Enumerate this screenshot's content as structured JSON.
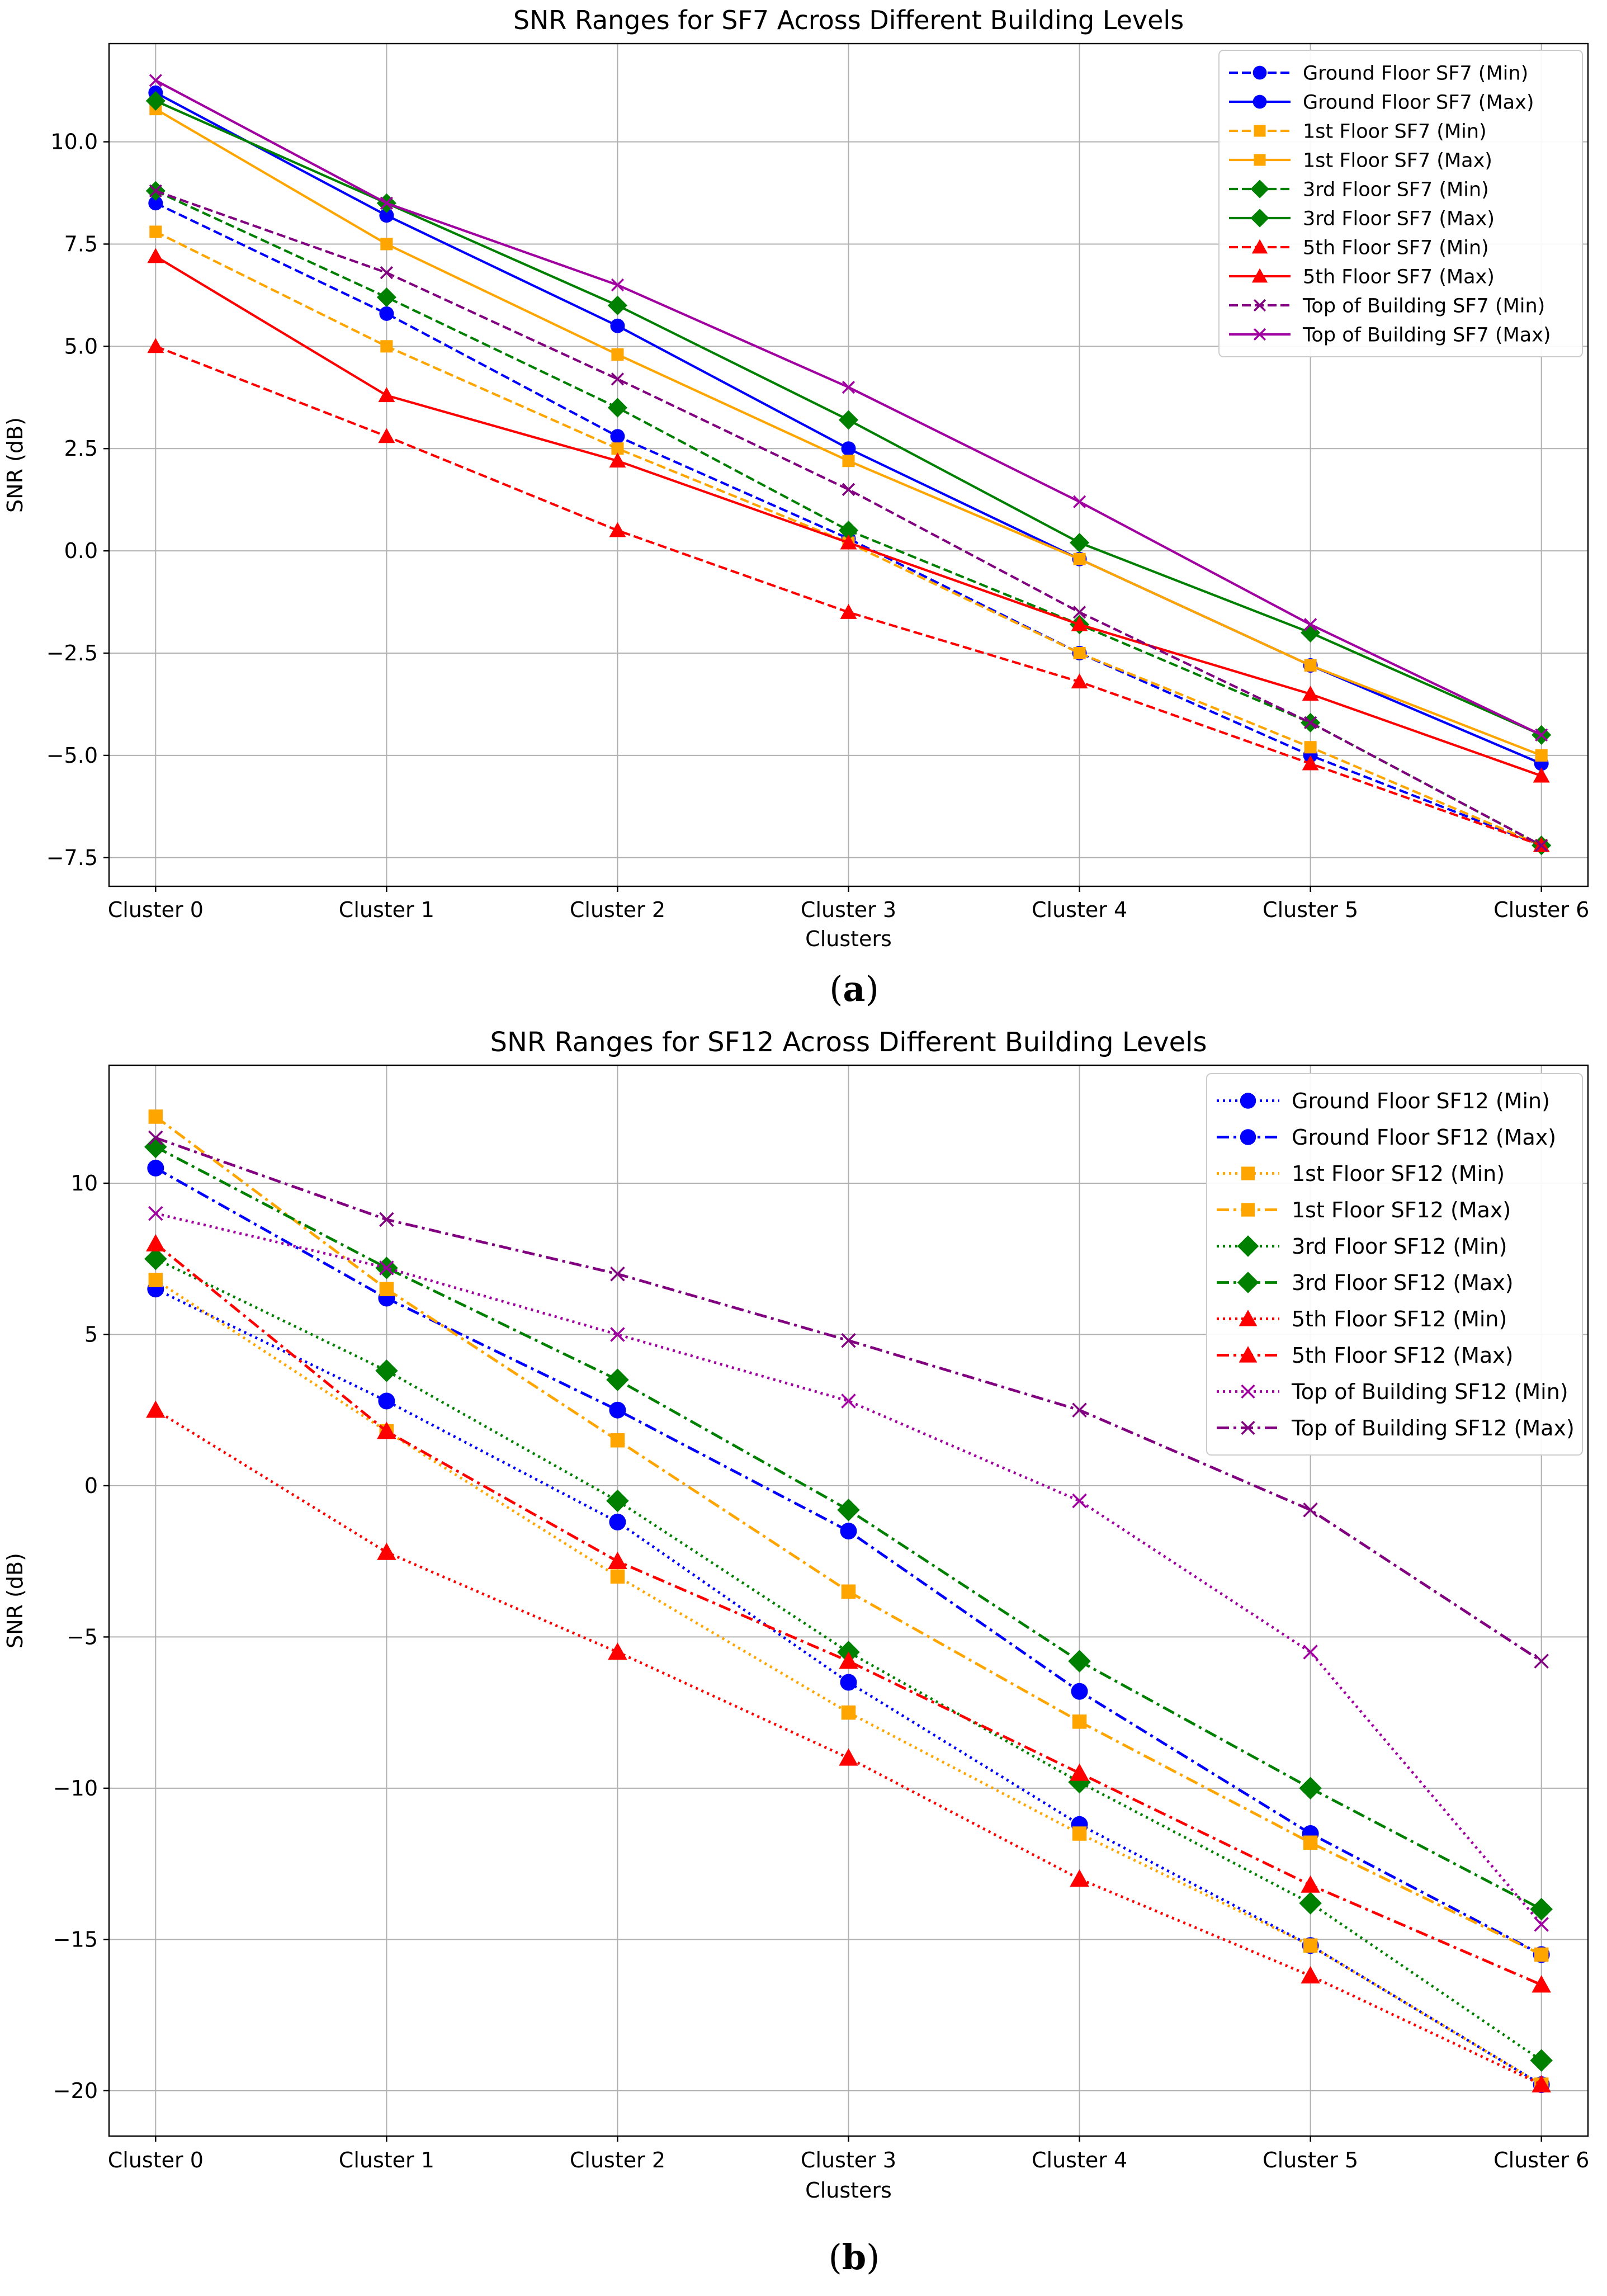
{
  "chart_data": [
    {
      "type": "line",
      "title": "SNR Ranges for SF7 Across Different Building Levels",
      "xlabel": "Clusters",
      "ylabel": "SNR (dB)",
      "caption_letter": "a",
      "categories": [
        "Cluster 0",
        "Cluster 1",
        "Cluster 2",
        "Cluster 3",
        "Cluster 4",
        "Cluster 5",
        "Cluster 6"
      ],
      "ylim": [
        -8.2,
        12.4
      ],
      "yticks": [
        -7.5,
        -5.0,
        -2.5,
        0.0,
        2.5,
        5.0,
        7.5,
        10.0
      ],
      "ytick_labels": [
        "−7.5",
        "−5.0",
        "−2.5",
        "0.0",
        "2.5",
        "5.0",
        "7.5",
        "10.0"
      ],
      "grid": true,
      "legend_position": "top-right",
      "series": [
        {
          "name": "Ground Floor SF7 (Min)",
          "color": "#0000ff",
          "dash": "dashed",
          "marker": "circle",
          "values": [
            8.5,
            5.8,
            2.8,
            0.3,
            -2.5,
            -5.0,
            -7.2
          ]
        },
        {
          "name": "Ground Floor SF7 (Max)",
          "color": "#0000ff",
          "dash": "solid",
          "marker": "circle",
          "values": [
            11.2,
            8.2,
            5.5,
            2.5,
            -0.2,
            -2.8,
            -5.2
          ]
        },
        {
          "name": "1st Floor SF7 (Min)",
          "color": "#ffa500",
          "dash": "dashed",
          "marker": "square",
          "values": [
            7.8,
            5.0,
            2.5,
            0.2,
            -2.5,
            -4.8,
            -7.2
          ]
        },
        {
          "name": "1st Floor SF7 (Max)",
          "color": "#ffa500",
          "dash": "solid",
          "marker": "square",
          "values": [
            10.8,
            7.5,
            4.8,
            2.2,
            -0.2,
            -2.8,
            -5.0
          ]
        },
        {
          "name": "3rd Floor SF7 (Min)",
          "color": "#008000",
          "dash": "dashed",
          "marker": "diamond",
          "values": [
            8.8,
            6.2,
            3.5,
            0.5,
            -1.8,
            -4.2,
            -7.2
          ]
        },
        {
          "name": "3rd Floor SF7 (Max)",
          "color": "#008000",
          "dash": "solid",
          "marker": "diamond",
          "values": [
            11.0,
            8.5,
            6.0,
            3.2,
            0.2,
            -2.0,
            -4.5
          ]
        },
        {
          "name": "5th Floor SF7 (Min)",
          "color": "#ff0000",
          "dash": "dashed",
          "marker": "triangle",
          "values": [
            5.0,
            2.8,
            0.5,
            -1.5,
            -3.2,
            -5.2,
            -7.2
          ]
        },
        {
          "name": "5th Floor SF7 (Max)",
          "color": "#ff0000",
          "dash": "solid",
          "marker": "triangle",
          "values": [
            7.2,
            3.8,
            2.2,
            0.2,
            -1.8,
            -3.5,
            -5.5
          ]
        },
        {
          "name": "Top of Building SF7 (Min)",
          "color": "#800080",
          "dash": "dashed",
          "marker": "x",
          "values": [
            8.8,
            6.8,
            4.2,
            1.5,
            -1.5,
            -4.2,
            -7.2
          ]
        },
        {
          "name": "Top of Building SF7 (Max)",
          "color": "#a000a0",
          "dash": "solid",
          "marker": "x",
          "values": [
            11.5,
            8.5,
            6.5,
            4.0,
            1.2,
            -1.8,
            -4.5
          ]
        }
      ]
    },
    {
      "type": "line",
      "title": "SNR Ranges for SF12 Across Different Building Levels",
      "xlabel": "Clusters",
      "ylabel": "SNR (dB)",
      "caption_letter": "b",
      "categories": [
        "Cluster 0",
        "Cluster 1",
        "Cluster 2",
        "Cluster 3",
        "Cluster 4",
        "Cluster 5",
        "Cluster 6"
      ],
      "ylim": [
        -21.5,
        13.9
      ],
      "yticks": [
        -20,
        -15,
        -10,
        -5,
        0,
        5,
        10
      ],
      "ytick_labels": [
        "−20",
        "−15",
        "−10",
        "−5",
        "0",
        "5",
        "10"
      ],
      "grid": true,
      "legend_position": "top-right",
      "series": [
        {
          "name": "Ground Floor SF12 (Min)",
          "color": "#0000ff",
          "dash": "dotted",
          "marker": "circle",
          "values": [
            6.5,
            2.8,
            -1.2,
            -6.5,
            -11.2,
            -15.2,
            -19.8
          ]
        },
        {
          "name": "Ground Floor SF12 (Max)",
          "color": "#0000ff",
          "dash": "dashdot",
          "marker": "circle",
          "values": [
            10.5,
            6.2,
            2.5,
            -1.5,
            -6.8,
            -11.5,
            -15.5
          ]
        },
        {
          "name": "1st Floor SF12 (Min)",
          "color": "#ffa500",
          "dash": "dotted",
          "marker": "square",
          "values": [
            6.8,
            1.8,
            -3.0,
            -7.5,
            -11.5,
            -15.2,
            -19.8
          ]
        },
        {
          "name": "1st Floor SF12 (Max)",
          "color": "#ffa500",
          "dash": "dashdot",
          "marker": "square",
          "values": [
            12.2,
            6.5,
            1.5,
            -3.5,
            -7.8,
            -11.8,
            -15.5
          ]
        },
        {
          "name": "3rd Floor SF12 (Min)",
          "color": "#008000",
          "dash": "dotted",
          "marker": "diamond",
          "values": [
            7.5,
            3.8,
            -0.5,
            -5.5,
            -9.8,
            -13.8,
            -19.0
          ]
        },
        {
          "name": "3rd Floor SF12 (Max)",
          "color": "#008000",
          "dash": "dashdot",
          "marker": "diamond",
          "values": [
            11.2,
            7.2,
            3.5,
            -0.8,
            -5.8,
            -10.0,
            -14.0
          ]
        },
        {
          "name": "5th Floor SF12 (Min)",
          "color": "#ff0000",
          "dash": "dotted",
          "marker": "triangle",
          "values": [
            2.5,
            -2.2,
            -5.5,
            -9.0,
            -13.0,
            -16.2,
            -19.8
          ]
        },
        {
          "name": "5th Floor SF12 (Max)",
          "color": "#ff0000",
          "dash": "dashdot",
          "marker": "triangle",
          "values": [
            8.0,
            1.8,
            -2.5,
            -5.8,
            -9.5,
            -13.2,
            -16.5
          ]
        },
        {
          "name": "Top of Building SF12 (Min)",
          "color": "#a000a0",
          "dash": "dotted",
          "marker": "x",
          "values": [
            9.0,
            7.2,
            5.0,
            2.8,
            -0.5,
            -5.5,
            -14.5
          ]
        },
        {
          "name": "Top of Building SF12 (Max)",
          "color": "#800080",
          "dash": "dashdot",
          "marker": "x",
          "values": [
            11.5,
            8.8,
            7.0,
            4.8,
            2.5,
            -0.8,
            -5.8
          ]
        }
      ]
    }
  ]
}
